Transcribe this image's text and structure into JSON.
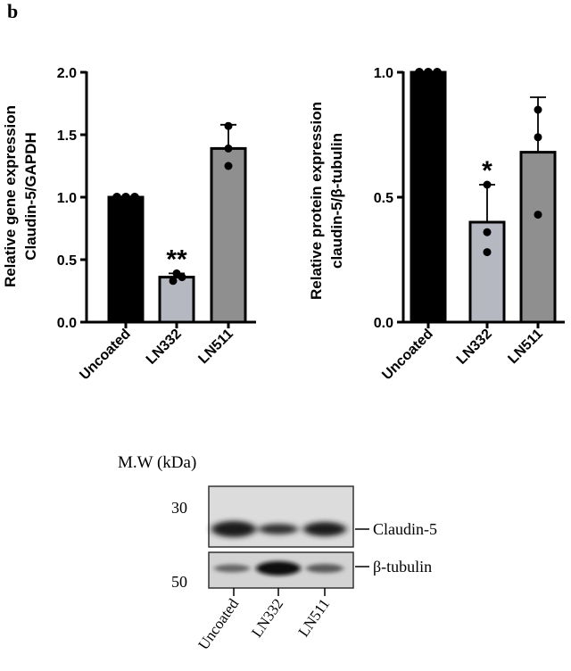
{
  "panel_label": "b",
  "chart_data": [
    {
      "type": "bar",
      "ylabel_line1": "Relative gene expression",
      "ylabel_line2": "Claudin-5/GAPDH",
      "categories": [
        "Uncoated",
        "LN332",
        "LN511"
      ],
      "values": [
        1.0,
        0.36,
        1.39
      ],
      "error_upper": [
        1.0,
        0.39,
        1.58
      ],
      "points": [
        [
          1.0,
          1.0,
          1.0
        ],
        [
          0.33,
          0.36,
          0.39
        ],
        [
          1.57,
          1.39,
          1.25
        ]
      ],
      "significance": [
        "",
        "**",
        ""
      ],
      "bar_colors": [
        "#000000",
        "#b5b8c0",
        "#8f8f8f"
      ],
      "ylim": [
        0,
        2.0
      ],
      "yticks": [
        "0.0",
        "0.5",
        "1.0",
        "1.5",
        "2.0"
      ]
    },
    {
      "type": "bar",
      "ylabel_line1": "Relative protein expression",
      "ylabel_line2": "claudin-5/β-tubulin",
      "categories": [
        "Uncoated",
        "LN332",
        "LN511"
      ],
      "values": [
        1.0,
        0.4,
        0.68
      ],
      "error_upper": [
        1.0,
        0.55,
        0.9
      ],
      "points": [
        [
          1.0,
          1.0,
          1.0
        ],
        [
          0.55,
          0.36,
          0.28
        ],
        [
          0.85,
          0.74,
          0.43
        ]
      ],
      "significance": [
        "",
        "*",
        ""
      ],
      "bar_colors": [
        "#000000",
        "#b5b8c0",
        "#8f8f8f"
      ],
      "ylim": [
        0,
        1.0
      ],
      "yticks": [
        "0.0",
        "0.5",
        "1.0"
      ]
    }
  ],
  "blot": {
    "mw_label": "M.W (kDa)",
    "markers": [
      "30",
      "50"
    ],
    "bands": [
      "Claudin-5",
      "β-tubulin"
    ],
    "lanes": [
      "Uncoated",
      "LN332",
      "LN511"
    ]
  }
}
